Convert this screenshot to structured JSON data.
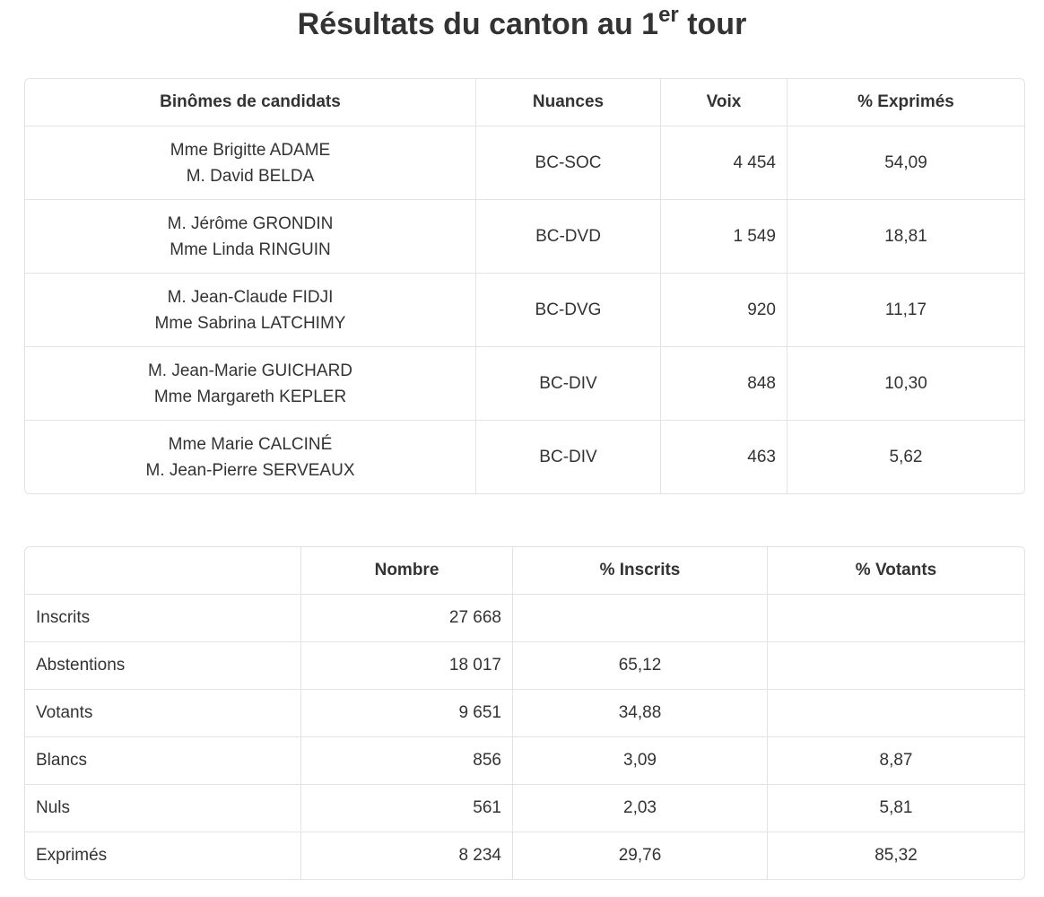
{
  "title": {
    "main": "Résultats du canton au 1",
    "sup": "er",
    "end": " tour"
  },
  "candidates": {
    "headers": [
      "Binômes de candidats",
      "Nuances",
      "Voix",
      "% Exprimés"
    ],
    "rows": [
      {
        "c1": "Mme Brigitte ADAME",
        "c2": "M. David BELDA",
        "nuance": "BC-SOC",
        "voix": "4 454",
        "pct": "54,09"
      },
      {
        "c1": "M. Jérôme GRONDIN",
        "c2": "Mme Linda RINGUIN",
        "nuance": "BC-DVD",
        "voix": "1 549",
        "pct": "18,81"
      },
      {
        "c1": "M. Jean-Claude FIDJI",
        "c2": "Mme Sabrina LATCHIMY",
        "nuance": "BC-DVG",
        "voix": "920",
        "pct": "11,17"
      },
      {
        "c1": "M. Jean-Marie GUICHARD",
        "c2": "Mme Margareth KEPLER",
        "nuance": "BC-DIV",
        "voix": "848",
        "pct": "10,30"
      },
      {
        "c1": "Mme Marie CALCINÉ",
        "c2": "M. Jean-Pierre SERVEAUX",
        "nuance": "BC-DIV",
        "voix": "463",
        "pct": "5,62"
      }
    ]
  },
  "stats": {
    "headers": [
      "",
      "Nombre",
      "% Inscrits",
      "% Votants"
    ],
    "rows": [
      {
        "label": "Inscrits",
        "nombre": "27 668",
        "inscrits": "",
        "votants": ""
      },
      {
        "label": "Abstentions",
        "nombre": "18 017",
        "inscrits": "65,12",
        "votants": ""
      },
      {
        "label": "Votants",
        "nombre": "9 651",
        "inscrits": "34,88",
        "votants": ""
      },
      {
        "label": "Blancs",
        "nombre": "856",
        "inscrits": "3,09",
        "votants": "8,87"
      },
      {
        "label": "Nuls",
        "nombre": "561",
        "inscrits": "2,03",
        "votants": "5,81"
      },
      {
        "label": "Exprimés",
        "nombre": "8 234",
        "inscrits": "29,76",
        "votants": "85,32"
      }
    ]
  }
}
